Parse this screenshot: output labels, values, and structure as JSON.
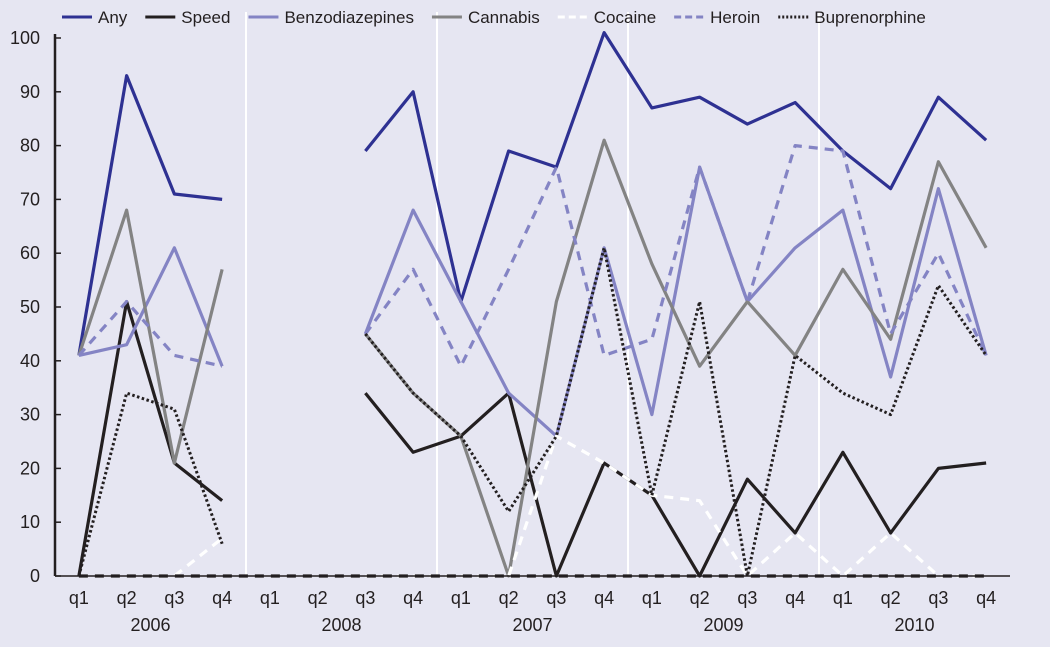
{
  "chart_data": {
    "type": "line",
    "ylim": [
      0,
      100
    ],
    "yticks": [
      0,
      10,
      20,
      30,
      40,
      50,
      60,
      70,
      80,
      90,
      100
    ],
    "quarters": [
      "q1",
      "q2",
      "q3",
      "q4",
      "q1",
      "q2",
      "q3",
      "q4",
      "q1",
      "q2",
      "q3",
      "q4",
      "q1",
      "q2",
      "q3",
      "q4",
      "q1",
      "q2",
      "q3",
      "q4"
    ],
    "year_groups": [
      {
        "label": "2006",
        "from": 0,
        "to": 3
      },
      {
        "label": "2008",
        "from": 4,
        "to": 7
      },
      {
        "label": "2007",
        "from": 8,
        "to": 11
      },
      {
        "label": "2009",
        "from": 12,
        "to": 15
      },
      {
        "label": "2010",
        "from": 16,
        "to": 19
      }
    ],
    "grid": "vertical separators between year groups",
    "legend_position": "top",
    "series": [
      {
        "name": "Any",
        "color": "#2e3192",
        "style": "solid",
        "values": [
          41,
          93,
          71,
          70,
          null,
          null,
          79,
          90,
          51,
          79,
          76,
          101,
          87,
          89,
          84,
          88,
          79,
          72,
          89,
          81
        ]
      },
      {
        "name": "Speed",
        "color": "#231f20",
        "style": "solid",
        "values": [
          0,
          51,
          21,
          14,
          null,
          null,
          34,
          23,
          26,
          34,
          0,
          21,
          15,
          0,
          18,
          8,
          23,
          8,
          20,
          21
        ]
      },
      {
        "name": "Benzodiazepines",
        "color": "#8484c4",
        "style": "solid",
        "values": [
          41,
          43,
          61,
          39,
          null,
          null,
          45,
          68,
          51,
          34,
          26,
          61,
          30,
          76,
          51,
          61,
          68,
          37,
          72,
          41
        ]
      },
      {
        "name": "Cannabis",
        "color": "#838383",
        "style": "solid",
        "values": [
          41,
          68,
          21,
          57,
          null,
          null,
          45,
          34,
          26,
          0,
          51,
          81,
          58,
          39,
          51,
          41,
          57,
          44,
          77,
          61
        ]
      },
      {
        "name": "Cocaine",
        "color": "#ffffff",
        "style": "dash",
        "values": [
          0,
          0,
          0,
          7,
          null,
          null,
          0,
          0,
          0,
          0,
          26,
          21,
          15,
          14,
          0,
          8,
          0,
          8,
          0,
          0
        ]
      },
      {
        "name": "Heroin",
        "color": "#8484c4",
        "style": "dash",
        "values": [
          41,
          51,
          41,
          39,
          null,
          null,
          45,
          57,
          39,
          57,
          76,
          41,
          44,
          76,
          51,
          80,
          79,
          45,
          60,
          41
        ]
      },
      {
        "name": "Buprenorphine",
        "color": "#231f20",
        "style": "dot",
        "values": [
          0,
          34,
          31,
          6,
          null,
          null,
          45,
          34,
          26,
          12,
          26,
          61,
          15,
          51,
          0,
          41,
          34,
          30,
          54,
          41
        ]
      },
      {
        "name": "",
        "color": "#231f20",
        "style": "dash",
        "values": [
          0,
          0,
          0,
          0,
          0,
          0,
          0,
          0,
          0,
          0,
          0,
          0,
          0,
          0,
          0,
          0,
          0,
          0,
          0,
          0
        ]
      }
    ]
  }
}
